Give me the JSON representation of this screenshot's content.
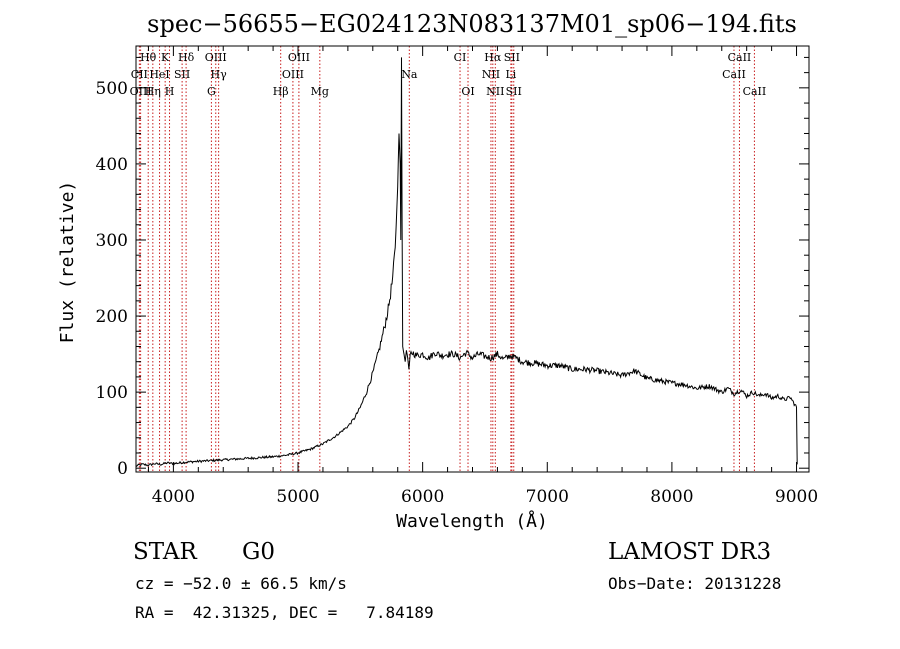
{
  "chart_data": {
    "type": "line",
    "title": "spec−56655−EG024123N083137M01_sp06−194.fits",
    "xlabel": "Wavelength (Å)",
    "ylabel": "Flux (relative)",
    "xlim": [
      3700,
      9100
    ],
    "ylim": [
      -5,
      555
    ],
    "xticks": [
      4000,
      5000,
      6000,
      7000,
      8000,
      9000
    ],
    "yticks": [
      0,
      100,
      200,
      300,
      400,
      500
    ],
    "grid": false,
    "series": [
      {
        "name": "spectrum",
        "x": [
          3700,
          3750,
          3800,
          3850,
          3900,
          3950,
          4000,
          4100,
          4200,
          4300,
          4400,
          4500,
          4600,
          4700,
          4800,
          4900,
          5000,
          5100,
          5200,
          5300,
          5400,
          5450,
          5500,
          5550,
          5600,
          5650,
          5700,
          5730,
          5760,
          5780,
          5800,
          5810,
          5820,
          5825,
          5830,
          5835,
          5840,
          5850,
          5860,
          5870,
          5880,
          5890,
          5900,
          5920,
          5950,
          6000,
          6050,
          6100,
          6150,
          6200,
          6250,
          6300,
          6350,
          6400,
          6450,
          6500,
          6550,
          6600,
          6650,
          6700,
          6750,
          6800,
          6900,
          7000,
          7100,
          7200,
          7300,
          7400,
          7500,
          7600,
          7700,
          7800,
          7900,
          8000,
          8100,
          8200,
          8300,
          8400,
          8450,
          8500,
          8550,
          8600,
          8650,
          8700,
          8750,
          8800,
          8850,
          8900,
          8950,
          9000,
          9005
        ],
        "y": [
          3,
          5,
          4,
          6,
          5,
          7,
          6,
          8,
          9,
          10,
          11,
          12,
          13,
          14,
          15,
          17,
          20,
          25,
          32,
          42,
          55,
          65,
          80,
          100,
          125,
          155,
          190,
          215,
          250,
          290,
          370,
          440,
          400,
          300,
          540,
          320,
          160,
          150,
          140,
          155,
          145,
          130,
          150,
          152,
          148,
          150,
          145,
          152,
          148,
          150,
          150,
          145,
          152,
          145,
          150,
          147,
          145,
          150,
          143,
          148,
          145,
          140,
          138,
          135,
          135,
          130,
          130,
          128,
          125,
          122,
          128,
          118,
          115,
          112,
          110,
          105,
          108,
          100,
          105,
          98,
          103,
          95,
          100,
          95,
          98,
          92,
          95,
          90,
          93,
          80,
          5
        ]
      }
    ],
    "spectral_lines": [
      {
        "label": "Hθ",
        "wavelength": 3798,
        "row": 0
      },
      {
        "label": "CII",
        "wavelength": 3727,
        "row": 1
      },
      {
        "label": "OIII",
        "wavelength": 3737,
        "row": 2
      },
      {
        "label": "K",
        "wavelength": 3934,
        "row": 0
      },
      {
        "label": "HeI",
        "wavelength": 3889,
        "row": 1
      },
      {
        "label": "Hη",
        "wavelength": 3835,
        "row": 2
      },
      {
        "label": "SII",
        "wavelength": 4070,
        "row": 1
      },
      {
        "label": "H",
        "wavelength": 3969,
        "row": 2
      },
      {
        "label": "Hδ",
        "wavelength": 4102,
        "row": 0
      },
      {
        "label": "OIII",
        "wavelength": 4340,
        "row": 0
      },
      {
        "label": "Hγ",
        "wavelength": 4363,
        "row": 1
      },
      {
        "label": "G",
        "wavelength": 4305,
        "row": 2
      },
      {
        "label": "Hβ",
        "wavelength": 4861,
        "row": 2
      },
      {
        "label": "OIII",
        "wavelength": 5007,
        "row": 0
      },
      {
        "label": "OIII",
        "wavelength": 4959,
        "row": 1
      },
      {
        "label": "Mg",
        "wavelength": 5175,
        "row": 2
      },
      {
        "label": "Na",
        "wavelength": 5893,
        "row": 1
      },
      {
        "label": "CI",
        "wavelength": 6300,
        "row": 0
      },
      {
        "label": "OI",
        "wavelength": 6364,
        "row": 2
      },
      {
        "label": "Hα",
        "wavelength": 6563,
        "row": 0
      },
      {
        "label": "SII",
        "wavelength": 6716,
        "row": 0
      },
      {
        "label": "NII",
        "wavelength": 6548,
        "row": 1
      },
      {
        "label": "Li",
        "wavelength": 6708,
        "row": 1
      },
      {
        "label": "NII",
        "wavelength": 6583,
        "row": 2
      },
      {
        "label": "SII",
        "wavelength": 6731,
        "row": 2
      },
      {
        "label": "CaII",
        "wavelength": 8542,
        "row": 0
      },
      {
        "label": "CaII",
        "wavelength": 8498,
        "row": 1
      },
      {
        "label": "CaII",
        "wavelength": 8662,
        "row": 2
      }
    ],
    "colors": {
      "line": "#000000",
      "marker_lines": "#c81e1e",
      "axes": "#000000"
    }
  },
  "info": {
    "object_class": "STAR",
    "subclass": "G0",
    "survey": "LAMOST DR3",
    "cz": "cz = −52.0 ± 66.5 km/s",
    "obs_date": "Obs−Date: 20131228",
    "coords": "RA =  42.31325, DEC =   7.84189"
  }
}
